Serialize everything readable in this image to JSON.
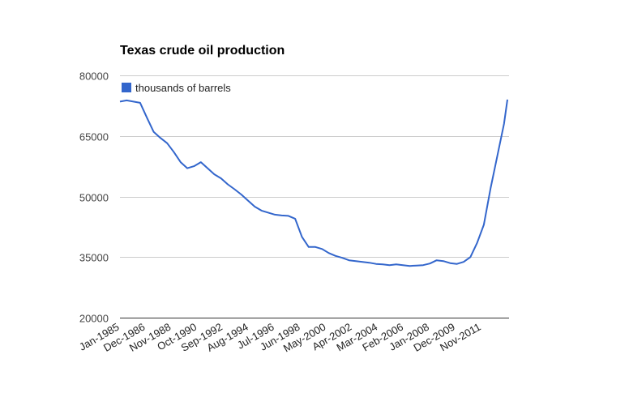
{
  "chart_data": {
    "type": "line",
    "title": "Texas crude oil production",
    "xlabel": "",
    "ylabel": "",
    "ylim": [
      20000,
      80000
    ],
    "yticks": [
      "80000",
      "65000",
      "50000",
      "35000",
      "20000"
    ],
    "xticks": [
      "Jan-1985",
      "Dec-1986",
      "Nov-1988",
      "Oct-1990",
      "Sep-1992",
      "Aug-1994",
      "Jul-1996",
      "Jun-1998",
      "May-2000",
      "Apr-2002",
      "Mar-2004",
      "Feb-2006",
      "Jan-2008",
      "Dec-2009",
      "Nov-2011"
    ],
    "legend": "top-left",
    "grid": true,
    "series": [
      {
        "name": "thousands of barrels",
        "color": "#3366cc",
        "x": [
          "Jan-1985",
          "Jul-1985",
          "Jan-1986",
          "Jul-1986",
          "Jan-1987",
          "Jul-1987",
          "Jan-1988",
          "Jul-1988",
          "Jan-1989",
          "Jul-1989",
          "Jan-1990",
          "Jul-1990",
          "Jan-1991",
          "Jul-1991",
          "Jan-1992",
          "Jul-1992",
          "Jan-1993",
          "Jul-1993",
          "Jan-1994",
          "Jul-1994",
          "Jan-1995",
          "Jul-1995",
          "Jan-1996",
          "Jul-1996",
          "Jan-1997",
          "Jul-1997",
          "Jan-1998",
          "Jul-1998",
          "Jan-1999",
          "Jul-1999",
          "Jan-2000",
          "Jul-2000",
          "Jan-2001",
          "Jul-2001",
          "Jan-2002",
          "Jul-2002",
          "Jan-2003",
          "Jul-2003",
          "Jan-2004",
          "Jul-2004",
          "Jan-2005",
          "Jul-2005",
          "Jan-2006",
          "Jul-2006",
          "Jan-2007",
          "Jul-2007",
          "Jan-2008",
          "Jul-2008",
          "Jan-2009",
          "Jul-2009",
          "Jan-2010",
          "Jul-2010",
          "Jan-2011",
          "Jul-2011",
          "Jan-2012",
          "Jul-2012",
          "Jan-2013",
          "Jul-2013",
          "Oct-2013"
        ],
        "values": [
          73500,
          73800,
          73500,
          73200,
          69500,
          66000,
          64500,
          63200,
          61000,
          58500,
          57000,
          57500,
          58500,
          57000,
          55500,
          54500,
          53000,
          51800,
          50500,
          49000,
          47500,
          46500,
          46000,
          45500,
          45300,
          45200,
          44500,
          40000,
          37500,
          37500,
          37000,
          36000,
          35300,
          34800,
          34200,
          34000,
          33800,
          33600,
          33300,
          33200,
          33000,
          33200,
          33000,
          32800,
          32900,
          33000,
          33400,
          34200,
          34000,
          33500,
          33300,
          33800,
          35000,
          38500,
          43000,
          52000,
          60000,
          68000,
          74000
        ]
      }
    ]
  }
}
